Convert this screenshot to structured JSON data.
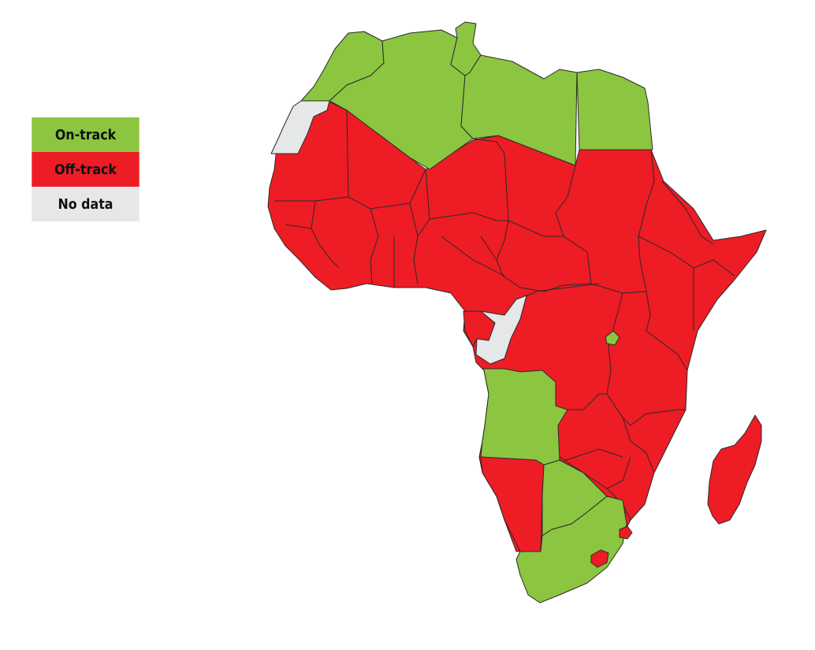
{
  "legend": {
    "items": [
      {
        "label": "On-track",
        "color": "#8cc540"
      },
      {
        "label": "Off-track",
        "color": "#ee1c25"
      },
      {
        "label": "No data",
        "color": "#e6e7e8"
      }
    ]
  },
  "colors": {
    "on_track": "#8cc540",
    "off_track": "#ee1c25",
    "no_data": "#e6e7e8",
    "border": "#2a2a2a"
  }
}
